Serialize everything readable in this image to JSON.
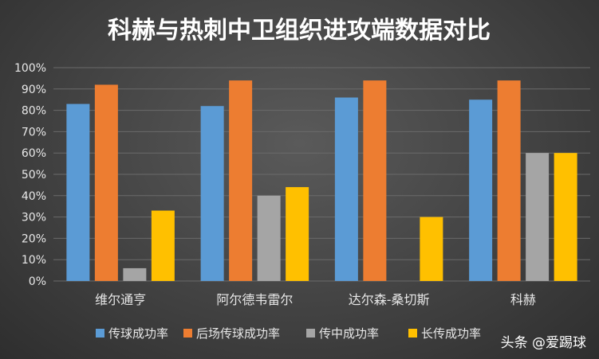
{
  "chart_data": {
    "type": "bar",
    "title": "科赫与热刺中卫组织进攻端数据对比",
    "categories": [
      "维尔通亨",
      "阿尔德韦雷尔",
      "达尔森-桑切斯",
      "科赫"
    ],
    "series": [
      {
        "name": "传球成功率",
        "color": "#5b9bd5",
        "values": [
          83,
          82,
          86,
          85
        ]
      },
      {
        "name": "后场传球成功率",
        "color": "#ed7d31",
        "values": [
          92,
          94,
          94,
          94
        ]
      },
      {
        "name": "传中成功率",
        "color": "#a5a5a5",
        "values": [
          6,
          40,
          0,
          60
        ]
      },
      {
        "name": "长传成功率",
        "color": "#ffc000",
        "values": [
          33,
          44,
          30,
          60
        ]
      }
    ],
    "ylim": [
      0,
      100
    ],
    "yticks": [
      "0%",
      "10%",
      "20%",
      "30%",
      "40%",
      "50%",
      "60%",
      "70%",
      "80%",
      "90%",
      "100%"
    ],
    "grid": true,
    "legend": "bottom"
  },
  "watermark": "头条 @爱踢球"
}
